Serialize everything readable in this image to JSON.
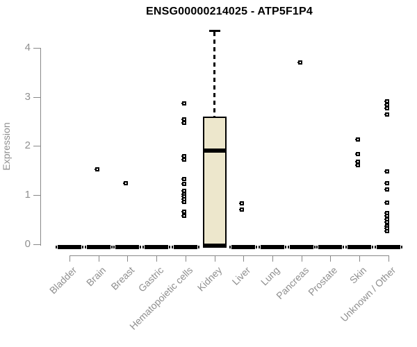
{
  "chart_data": {
    "type": "box",
    "title": "ENSG00000214025 - ATP5F1P4",
    "ylabel": "Expression",
    "xlabel": "",
    "ylim": [
      0,
      4.4
    ],
    "yticks": [
      0,
      1,
      2,
      3,
      4
    ],
    "grid": false,
    "legend": false,
    "box_fill": "#EDE7CC",
    "axis_color": "#888888",
    "tick_text_color": "#8f8f8f",
    "title_color": "#000000",
    "categories": [
      "Bladder",
      "Brain",
      "Breast",
      "Gastric",
      "Hematopoietic cells",
      "Kidney",
      "Liver",
      "Lung",
      "Pancreas",
      "Prostate",
      "Skin",
      "Unknown / Other"
    ],
    "boxes": [
      {
        "category": "Bladder",
        "low": 0,
        "q1": 0,
        "median": 0,
        "q3": 0,
        "high": 0,
        "outliers": []
      },
      {
        "category": "Brain",
        "low": 0,
        "q1": 0,
        "median": 0,
        "q3": 0,
        "high": 0,
        "outliers": [
          1.52
        ]
      },
      {
        "category": "Breast",
        "low": 0,
        "q1": 0,
        "median": 0,
        "q3": 0,
        "high": 0,
        "outliers": [
          1.24
        ]
      },
      {
        "category": "Gastric",
        "low": 0,
        "q1": 0,
        "median": 0,
        "q3": 0,
        "high": 0,
        "outliers": []
      },
      {
        "category": "Hematopoietic cells",
        "low": 0,
        "q1": 0,
        "median": 0,
        "q3": 0,
        "high": 0,
        "outliers": [
          2.87,
          2.55,
          2.48,
          1.79,
          1.72,
          1.32,
          1.23,
          1.08,
          1.02,
          0.97,
          0.91,
          0.86,
          0.66,
          0.57
        ]
      },
      {
        "category": "Kidney",
        "low": 0,
        "q1": 0,
        "median": 1.9,
        "q3": 2.6,
        "high": 4.37,
        "outliers": []
      },
      {
        "category": "Liver",
        "low": 0,
        "q1": 0,
        "median": 0,
        "q3": 0,
        "high": 0,
        "outliers": [
          0.83,
          0.71
        ]
      },
      {
        "category": "Lung",
        "low": 0,
        "q1": 0,
        "median": 0,
        "q3": 0,
        "high": 0,
        "outliers": []
      },
      {
        "category": "Pancreas",
        "low": 0,
        "q1": 0,
        "median": 0,
        "q3": 0,
        "high": 0,
        "outliers": [
          3.7
        ]
      },
      {
        "category": "Prostate",
        "low": 0,
        "q1": 0,
        "median": 0,
        "q3": 0,
        "high": 0,
        "outliers": []
      },
      {
        "category": "Skin",
        "low": 0,
        "q1": 0,
        "median": 0,
        "q3": 0,
        "high": 0,
        "outliers": [
          2.14,
          1.84,
          1.68,
          1.61
        ]
      },
      {
        "category": "Unknown / Other",
        "low": 0,
        "q1": 0,
        "median": 0,
        "q3": 0,
        "high": 0,
        "outliers": [
          2.91,
          2.84,
          2.77,
          2.64,
          1.48,
          1.24,
          1.12,
          0.85,
          0.63,
          0.57,
          0.51,
          0.45,
          0.36,
          0.32,
          0.27
        ]
      }
    ]
  }
}
